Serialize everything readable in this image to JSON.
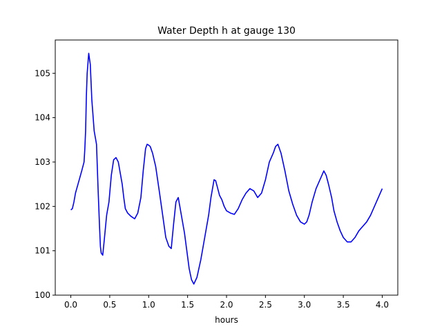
{
  "chart_data": {
    "type": "line",
    "title": "Water Depth h at gauge 130",
    "xlabel": "hours",
    "ylabel": "",
    "xlim": [
      -0.2,
      4.2
    ],
    "ylim": [
      100.0,
      105.75
    ],
    "xticks": [
      0.0,
      0.5,
      1.0,
      1.5,
      2.0,
      2.5,
      3.0,
      3.5,
      4.0
    ],
    "xtick_labels": [
      "0.0",
      "0.5",
      "1.0",
      "1.5",
      "2.0",
      "2.5",
      "3.0",
      "3.5",
      "4.0"
    ],
    "yticks": [
      100,
      101,
      102,
      103,
      104,
      105
    ],
    "ytick_labels": [
      "100",
      "101",
      "102",
      "103",
      "104",
      "105"
    ],
    "grid": false,
    "color": "#0000ff",
    "series": [
      {
        "name": "",
        "x": [
          0.0,
          0.02,
          0.04,
          0.06,
          0.1,
          0.14,
          0.17,
          0.18,
          0.19,
          0.2,
          0.21,
          0.23,
          0.25,
          0.27,
          0.3,
          0.33,
          0.35,
          0.37,
          0.38,
          0.39,
          0.41,
          0.43,
          0.46,
          0.49,
          0.52,
          0.55,
          0.58,
          0.61,
          0.63,
          0.66,
          0.68,
          0.7,
          0.73,
          0.77,
          0.82,
          0.86,
          0.9,
          0.93,
          0.96,
          0.98,
          1.0,
          1.02,
          1.05,
          1.09,
          1.14,
          1.18,
          1.22,
          1.26,
          1.29,
          1.32,
          1.35,
          1.38,
          1.42,
          1.46,
          1.49,
          1.52,
          1.55,
          1.58,
          1.62,
          1.67,
          1.72,
          1.77,
          1.8,
          1.82,
          1.84,
          1.86,
          1.88,
          1.91,
          1.94,
          1.97,
          2.0,
          2.05,
          2.1,
          2.15,
          2.2,
          2.25,
          2.3,
          2.35,
          2.4,
          2.45,
          2.5,
          2.55,
          2.6,
          2.63,
          2.66,
          2.7,
          2.75,
          2.8,
          2.85,
          2.9,
          2.95,
          3.0,
          3.03,
          3.06,
          3.1,
          3.15,
          3.2,
          3.25,
          3.28,
          3.31,
          3.35,
          3.38,
          3.42,
          3.46,
          3.5,
          3.55,
          3.6,
          3.65,
          3.7,
          3.75,
          3.8,
          3.85,
          3.9,
          3.95,
          4.0
        ],
        "y": [
          101.92,
          101.95,
          102.1,
          102.3,
          102.55,
          102.8,
          103.0,
          103.3,
          103.7,
          104.5,
          105.0,
          105.45,
          105.2,
          104.4,
          103.7,
          103.4,
          102.4,
          101.5,
          101.1,
          100.95,
          100.9,
          101.25,
          101.8,
          102.1,
          102.7,
          103.05,
          103.1,
          103.0,
          102.8,
          102.5,
          102.2,
          101.95,
          101.85,
          101.78,
          101.72,
          101.85,
          102.2,
          102.8,
          103.3,
          103.4,
          103.38,
          103.35,
          103.2,
          102.9,
          102.3,
          101.8,
          101.3,
          101.1,
          101.05,
          101.6,
          102.1,
          102.2,
          101.8,
          101.4,
          101.0,
          100.6,
          100.35,
          100.25,
          100.4,
          100.8,
          101.3,
          101.8,
          102.2,
          102.4,
          102.6,
          102.58,
          102.45,
          102.25,
          102.15,
          102.0,
          101.9,
          101.85,
          101.82,
          101.95,
          102.15,
          102.3,
          102.4,
          102.35,
          102.2,
          102.3,
          102.6,
          103.0,
          103.2,
          103.35,
          103.4,
          103.2,
          102.8,
          102.35,
          102.05,
          101.8,
          101.65,
          101.6,
          101.65,
          101.8,
          102.1,
          102.4,
          102.6,
          102.8,
          102.7,
          102.5,
          102.2,
          101.9,
          101.65,
          101.45,
          101.3,
          101.2,
          101.2,
          101.3,
          101.45,
          101.55,
          101.65,
          101.8,
          102.0,
          102.2,
          102.4
        ]
      }
    ]
  }
}
